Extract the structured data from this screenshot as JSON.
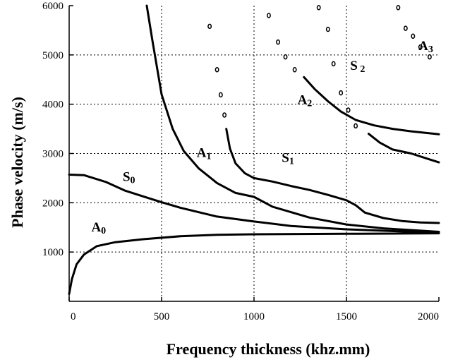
{
  "chart_data": {
    "type": "line",
    "title": "",
    "xlabel": "Frequency thickness (khz.mm)",
    "ylabel": "Phase velocity (m/s)",
    "xlim": [
      0,
      2000
    ],
    "ylim": [
      0,
      6000
    ],
    "xticks": [
      0,
      500,
      1000,
      1500,
      2000
    ],
    "xtick_labels": [
      "0",
      "500",
      "1000",
      "1500",
      "2000"
    ],
    "yticks": [
      1000,
      2000,
      3000,
      4000,
      5000,
      6000
    ],
    "ytick_labels": [
      "1000",
      "2000",
      "3000",
      "4000",
      "5000",
      "6000"
    ],
    "grid": true,
    "series_labels": [
      {
        "main": "A",
        "sub": "0",
        "x": 120,
        "y": 1420
      },
      {
        "main": "S",
        "sub": "0",
        "x": 290,
        "y": 2440
      },
      {
        "main": "A",
        "sub": "1",
        "x": 690,
        "y": 2930
      },
      {
        "main": "S",
        "sub": "1",
        "x": 1150,
        "y": 2830
      },
      {
        "main": "A",
        "sub": "2",
        "x": 1235,
        "y": 4000
      },
      {
        "main": "S",
        "sub": " 2",
        "x": 1520,
        "y": 4700
      },
      {
        "main": "A",
        "sub": "3",
        "x": 1890,
        "y": 5100
      }
    ],
    "series": [
      {
        "style": "line",
        "points": [
          [
            0,
            150
          ],
          [
            15,
            450
          ],
          [
            40,
            750
          ],
          [
            80,
            950
          ],
          [
            150,
            1120
          ],
          [
            250,
            1200
          ],
          [
            400,
            1260
          ],
          [
            600,
            1320
          ],
          [
            800,
            1350
          ],
          [
            1000,
            1360
          ],
          [
            1500,
            1370
          ],
          [
            2000,
            1380
          ]
        ]
      },
      {
        "style": "line",
        "points": [
          [
            0,
            2570
          ],
          [
            80,
            2560
          ],
          [
            200,
            2420
          ],
          [
            300,
            2250
          ],
          [
            400,
            2130
          ],
          [
            500,
            2010
          ],
          [
            600,
            1900
          ],
          [
            800,
            1720
          ],
          [
            1000,
            1620
          ],
          [
            1200,
            1530
          ],
          [
            1500,
            1460
          ],
          [
            2000,
            1390
          ]
        ]
      },
      {
        "style": "line",
        "points": [
          [
            420,
            6000
          ],
          [
            450,
            5300
          ],
          [
            500,
            4200
          ],
          [
            560,
            3500
          ],
          [
            620,
            3050
          ],
          [
            700,
            2700
          ],
          [
            800,
            2400
          ],
          [
            900,
            2200
          ],
          [
            1000,
            2120
          ],
          [
            1100,
            1920
          ],
          [
            1300,
            1700
          ],
          [
            1500,
            1560
          ],
          [
            1700,
            1480
          ],
          [
            2000,
            1410
          ]
        ]
      },
      {
        "style": "line",
        "points": [
          [
            850,
            3500
          ],
          [
            870,
            3100
          ],
          [
            900,
            2800
          ],
          [
            950,
            2600
          ],
          [
            1000,
            2500
          ],
          [
            1100,
            2430
          ],
          [
            1200,
            2340
          ],
          [
            1300,
            2260
          ],
          [
            1400,
            2160
          ],
          [
            1500,
            2050
          ],
          [
            1550,
            1950
          ],
          [
            1600,
            1800
          ],
          [
            1700,
            1690
          ],
          [
            1800,
            1630
          ],
          [
            1900,
            1600
          ],
          [
            2000,
            1590
          ]
        ]
      },
      {
        "style": "line",
        "points": [
          [
            1270,
            4550
          ],
          [
            1330,
            4300
          ],
          [
            1400,
            4060
          ],
          [
            1470,
            3850
          ],
          [
            1550,
            3680
          ],
          [
            1650,
            3570
          ],
          [
            1750,
            3500
          ],
          [
            1850,
            3450
          ],
          [
            2000,
            3390
          ]
        ]
      },
      {
        "style": "line",
        "points": [
          [
            1620,
            3400
          ],
          [
            1680,
            3220
          ],
          [
            1750,
            3080
          ],
          [
            1850,
            3000
          ],
          [
            1950,
            2880
          ],
          [
            2000,
            2820
          ]
        ]
      },
      {
        "style": "dots",
        "points": [
          [
            760,
            5580
          ],
          [
            800,
            4700
          ],
          [
            820,
            4190
          ],
          [
            840,
            3780
          ],
          [
            1080,
            5800
          ],
          [
            1130,
            5260
          ],
          [
            1170,
            4960
          ],
          [
            1220,
            4700
          ],
          [
            1350,
            5960
          ],
          [
            1400,
            5520
          ],
          [
            1430,
            4820
          ],
          [
            1470,
            4230
          ],
          [
            1510,
            3880
          ],
          [
            1550,
            3560
          ],
          [
            1780,
            5960
          ],
          [
            1820,
            5540
          ],
          [
            1860,
            5380
          ],
          [
            1900,
            5160
          ],
          [
            1950,
            4960
          ]
        ]
      }
    ]
  }
}
